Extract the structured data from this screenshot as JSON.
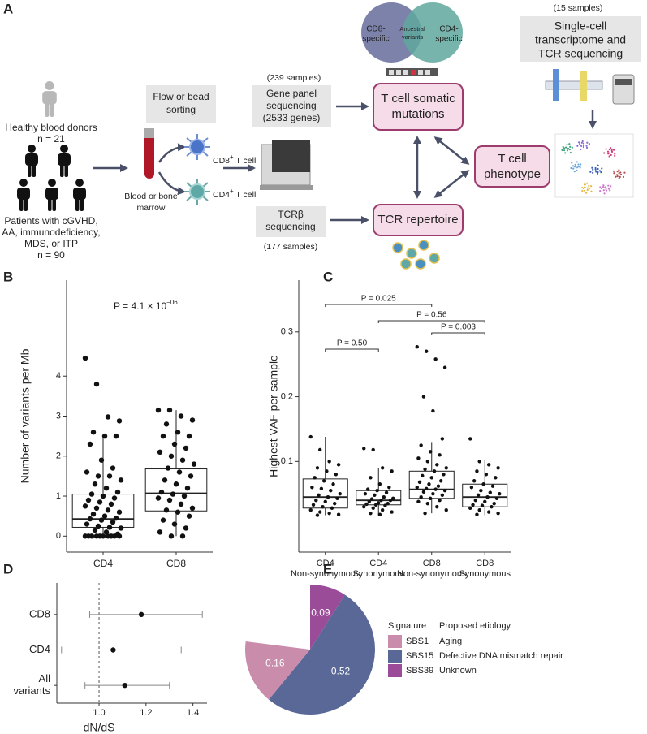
{
  "diagram": {
    "panel_label": "A",
    "donors": {
      "label": "Healthy blood donors",
      "n": "n = 21"
    },
    "patients": {
      "lines": [
        "Patients with cGVHD,",
        "AA, immunodeficiency,",
        "MDS, or ITP"
      ],
      "n": "n = 90"
    },
    "sorting": {
      "lines": [
        "Flow or bead",
        "sorting"
      ]
    },
    "sample": {
      "lines": [
        "Blood or bone",
        "marrow"
      ]
    },
    "cd8_cell": {
      "text": "CD8",
      "sup": "+",
      "rest": " T cell"
    },
    "cd4_cell": {
      "text": "CD4",
      "sup": "+",
      "rest": " T cell"
    },
    "gene_panel": {
      "samples": "(239 samples)",
      "lines": [
        "Gene panel",
        "sequencing",
        "(2533 genes)"
      ]
    },
    "tcr_seq": {
      "lines": [
        "TCRβ",
        "sequencing"
      ],
      "samples": "(177 samples)"
    },
    "somatic": {
      "lines": [
        "T cell somatic",
        "mutations"
      ]
    },
    "repertoire": {
      "lines": [
        "TCR repertoire"
      ]
    },
    "phenotype": {
      "lines": [
        "T cell",
        "phenotype"
      ]
    },
    "venn": {
      "left": [
        "CD8-",
        "specific"
      ],
      "middle": [
        "Ancestral",
        "variants"
      ],
      "right": [
        "CD4-",
        "specific"
      ]
    },
    "single_cell": {
      "samples": "(15 samples)",
      "lines": [
        "Single-cell",
        "transcriptome and",
        "TCR sequencing"
      ]
    }
  },
  "chart_data": [
    {
      "type": "box",
      "panel_label": "B",
      "ylabel": "Number of variants per Mb",
      "categories": [
        "CD4",
        "CD8"
      ],
      "boxes": [
        {
          "whislo": 0,
          "q1": 0.22,
          "med": 0.43,
          "q3": 1.05,
          "whishi": 2.5
        },
        {
          "whislo": 0,
          "q1": 0.63,
          "med": 1.07,
          "q3": 1.68,
          "whishi": 3.15
        }
      ],
      "points": [
        [
          4.45,
          3.8,
          2.98,
          2.88,
          2.6,
          2.5,
          2.5,
          2.3,
          1.9,
          1.7,
          1.6,
          1.5,
          1.5,
          1.4,
          1.3,
          1.2,
          1.1,
          1.05,
          1.0,
          0.95,
          0.9,
          0.85,
          0.8,
          0.75,
          0.7,
          0.65,
          0.6,
          0.55,
          0.5,
          0.45,
          0.43,
          0.4,
          0.35,
          0.3,
          0.25,
          0.22,
          0.2,
          0.15,
          0.1,
          0.05,
          0,
          0,
          0,
          0,
          0,
          0,
          0,
          0,
          0,
          0
        ],
        [
          3.15,
          3.15,
          3.0,
          2.9,
          2.8,
          2.6,
          2.5,
          2.5,
          2.3,
          2.2,
          2.1,
          2.0,
          1.9,
          1.8,
          1.7,
          1.6,
          1.5,
          1.4,
          1.3,
          1.2,
          1.1,
          1.05,
          1.0,
          0.95,
          0.9,
          0.8,
          0.7,
          0.65,
          0.6,
          0.5,
          0.4,
          0.3,
          0.2,
          0.1,
          0,
          0
        ]
      ],
      "ylim": [
        -0.4,
        6.4
      ],
      "yticks": [
        0,
        1,
        2,
        3,
        4
      ],
      "annotation": {
        "text": "P = 4.1 × 10",
        "exponent": "−06"
      }
    },
    {
      "type": "box",
      "panel_label": "C",
      "ylabel": "Highest VAF per sample",
      "categories": [
        [
          "CD4",
          "Non-synonymous"
        ],
        [
          "CD4",
          "Synonymous"
        ],
        [
          "CD8",
          "Non-synonymous"
        ],
        [
          "CD8",
          "Synonymous"
        ]
      ],
      "boxes": [
        {
          "whislo": 0.017,
          "q1": 0.028,
          "med": 0.045,
          "q3": 0.073,
          "whishi": 0.138
        },
        {
          "whislo": 0.017,
          "q1": 0.033,
          "med": 0.04,
          "q3": 0.055,
          "whishi": 0.09
        },
        {
          "whislo": 0.02,
          "q1": 0.043,
          "med": 0.057,
          "q3": 0.085,
          "whishi": 0.13
        },
        {
          "whislo": 0.017,
          "q1": 0.03,
          "med": 0.045,
          "q3": 0.065,
          "whishi": 0.102
        }
      ],
      "points": [
        [
          0.138,
          0.118,
          0.1,
          0.095,
          0.09,
          0.085,
          0.08,
          0.075,
          0.07,
          0.065,
          0.06,
          0.058,
          0.055,
          0.05,
          0.048,
          0.045,
          0.043,
          0.04,
          0.038,
          0.035,
          0.033,
          0.03,
          0.028,
          0.025,
          0.022,
          0.02,
          0.018,
          0.017
        ],
        [
          0.12,
          0.118,
          0.09,
          0.085,
          0.075,
          0.065,
          0.06,
          0.057,
          0.055,
          0.052,
          0.05,
          0.048,
          0.045,
          0.043,
          0.042,
          0.04,
          0.04,
          0.038,
          0.036,
          0.035,
          0.034,
          0.033,
          0.032,
          0.03,
          0.028,
          0.025,
          0.022,
          0.02,
          0.018
        ],
        [
          0.277,
          0.27,
          0.258,
          0.245,
          0.2,
          0.178,
          0.135,
          0.125,
          0.115,
          0.11,
          0.105,
          0.1,
          0.095,
          0.09,
          0.088,
          0.085,
          0.08,
          0.078,
          0.075,
          0.07,
          0.068,
          0.065,
          0.062,
          0.06,
          0.058,
          0.057,
          0.055,
          0.053,
          0.05,
          0.048,
          0.045,
          0.043,
          0.04,
          0.038,
          0.035,
          0.03,
          0.025,
          0.02
        ],
        [
          0.135,
          0.1,
          0.095,
          0.09,
          0.085,
          0.08,
          0.075,
          0.07,
          0.065,
          0.062,
          0.06,
          0.055,
          0.052,
          0.05,
          0.048,
          0.045,
          0.043,
          0.04,
          0.038,
          0.035,
          0.033,
          0.032,
          0.03,
          0.028,
          0.025,
          0.022,
          0.02,
          0.018
        ]
      ],
      "ylim": [
        -0.04,
        0.38
      ],
      "yticks": [
        0.1,
        0.2,
        0.3
      ],
      "comparisons": [
        "P = 0.025",
        "P = 0.56",
        "P = 0.003",
        "P = 0.50"
      ]
    },
    {
      "type": "forest",
      "panel_label": "D",
      "xlabel": "dN/dS",
      "categories": [
        [
          "CD8"
        ],
        [
          "CD4"
        ],
        [
          "All",
          "variants"
        ]
      ],
      "values": [
        1.18,
        1.06,
        1.11
      ],
      "lower": [
        0.96,
        0.84,
        0.94
      ],
      "upper": [
        1.44,
        1.35,
        1.3
      ],
      "xlim": [
        0.82,
        1.46
      ],
      "xticks": [
        {
          "value": 1,
          "label": "1.0"
        },
        {
          "value": 1.2,
          "label": "1.2"
        },
        {
          "value": 1.4,
          "label": "1.4"
        }
      ],
      "reference_line": 1
    },
    {
      "type": "pie",
      "panel_label": "E",
      "categories": [
        "SBS1",
        "SBS15",
        "SBS39"
      ],
      "values": [
        0.16,
        0.52,
        0.09
      ],
      "colors": [
        "#c98cab",
        "#5a6898",
        "#9a4c98"
      ],
      "legend_title": "Signature",
      "etiology_title": "Proposed etiology",
      "etiology": [
        "Aging",
        "Defective DNA mismatch repair",
        "Unknown"
      ]
    }
  ]
}
